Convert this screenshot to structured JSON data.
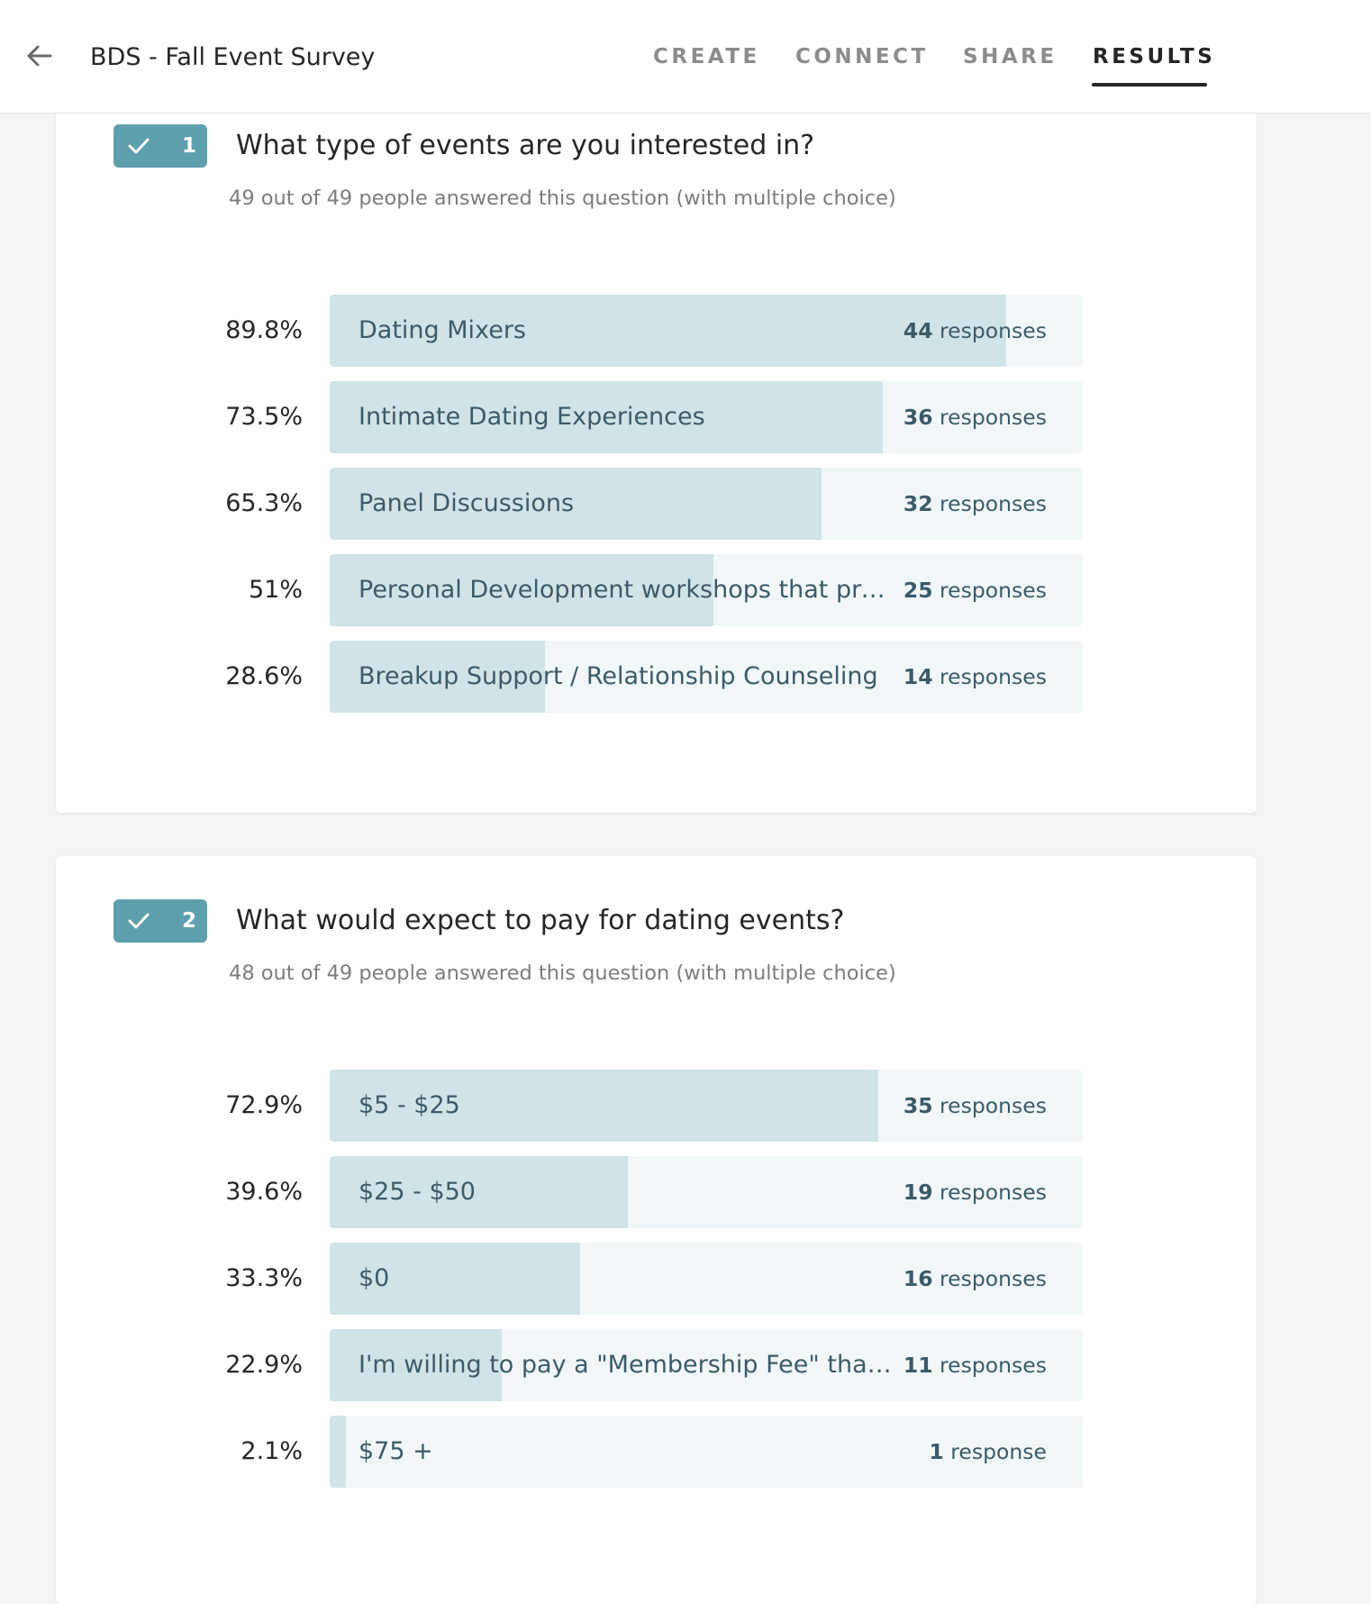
{
  "header": {
    "back_icon": "arrow-left-icon",
    "title": "BDS - Fall Event Survey",
    "tabs": [
      {
        "label": "CREATE",
        "active": false
      },
      {
        "label": "CONNECT",
        "active": false
      },
      {
        "label": "SHARE",
        "active": false
      },
      {
        "label": "RESULTS",
        "active": true
      }
    ]
  },
  "colors": {
    "badge": "#5e9fad",
    "bar_track": "#f1f7f8",
    "bar_fill": "#d0e4e8",
    "label_text": "#3c5a68"
  },
  "questions": [
    {
      "number": "1",
      "title": "What type of events are you interested in?",
      "subtitle": "49 out of 49 people answered this question (with multiple choice)",
      "options": [
        {
          "percent_label": "89.8%",
          "percent": 89.8,
          "label": "Dating Mixers",
          "count": "44",
          "unit": " responses"
        },
        {
          "percent_label": "73.5%",
          "percent": 73.5,
          "label": "Intimate Dating Experiences",
          "count": "36",
          "unit": " responses"
        },
        {
          "percent_label": "65.3%",
          "percent": 65.3,
          "label": "Panel Discussions",
          "count": "32",
          "unit": " responses"
        },
        {
          "percent_label": "51%",
          "percent": 51,
          "label": "Personal Development workshops that prepa...",
          "count": "25",
          "unit": " responses"
        },
        {
          "percent_label": "28.6%",
          "percent": 28.6,
          "label": "Breakup Support / Relationship Counseling",
          "count": "14",
          "unit": " responses"
        }
      ]
    },
    {
      "number": "2",
      "title": "What would expect to pay for dating events?",
      "subtitle": "48 out of 49 people answered this question (with multiple choice)",
      "options": [
        {
          "percent_label": "72.9%",
          "percent": 72.9,
          "label": "$5 - $25",
          "count": "35",
          "unit": " responses"
        },
        {
          "percent_label": "39.6%",
          "percent": 39.6,
          "label": "$25 - $50",
          "count": "19",
          "unit": " responses"
        },
        {
          "percent_label": "33.3%",
          "percent": 33.3,
          "label": "$0",
          "count": "16",
          "unit": " responses"
        },
        {
          "percent_label": "22.9%",
          "percent": 22.9,
          "label": "I'm willing to pay a \"Membership Fee\" that gra...",
          "count": "11",
          "unit": " responses"
        },
        {
          "percent_label": "2.1%",
          "percent": 2.1,
          "label": "$75 +",
          "count": "1",
          "unit": " response"
        }
      ]
    }
  ]
}
